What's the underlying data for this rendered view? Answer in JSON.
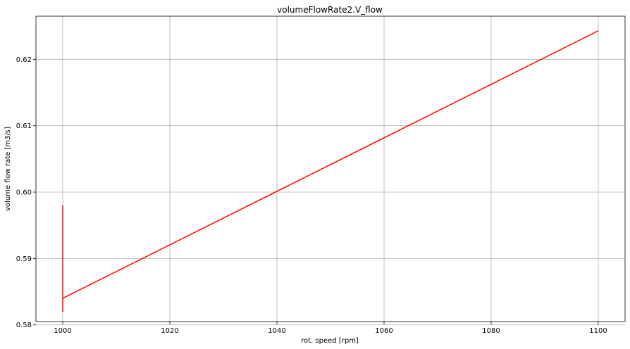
{
  "chart_data": {
    "type": "line",
    "title": "volumeFlowRate2.V_flow",
    "xlabel": "rot. speed [rpm]",
    "ylabel": "volume flow rate [m3/s]",
    "xlim": [
      995,
      1105
    ],
    "ylim": [
      0.5805,
      0.6265
    ],
    "xticks": [
      1000,
      1020,
      1040,
      1060,
      1080,
      1100
    ],
    "yticks": [
      0.58,
      0.59,
      0.6,
      0.61,
      0.62
    ],
    "ytick_labels": [
      "0.58",
      "0.59",
      "0.60",
      "0.61",
      "0.62"
    ],
    "xtick_labels": [
      "1000",
      "1020",
      "1040",
      "1060",
      "1080",
      "1100"
    ],
    "grid": true,
    "series": [
      {
        "color": "#ff0000",
        "x": [
          1000,
          1000,
          1000,
          1000,
          1100
        ],
        "y": [
          0.598,
          0.583,
          0.582,
          0.584,
          0.6243
        ]
      }
    ]
  }
}
